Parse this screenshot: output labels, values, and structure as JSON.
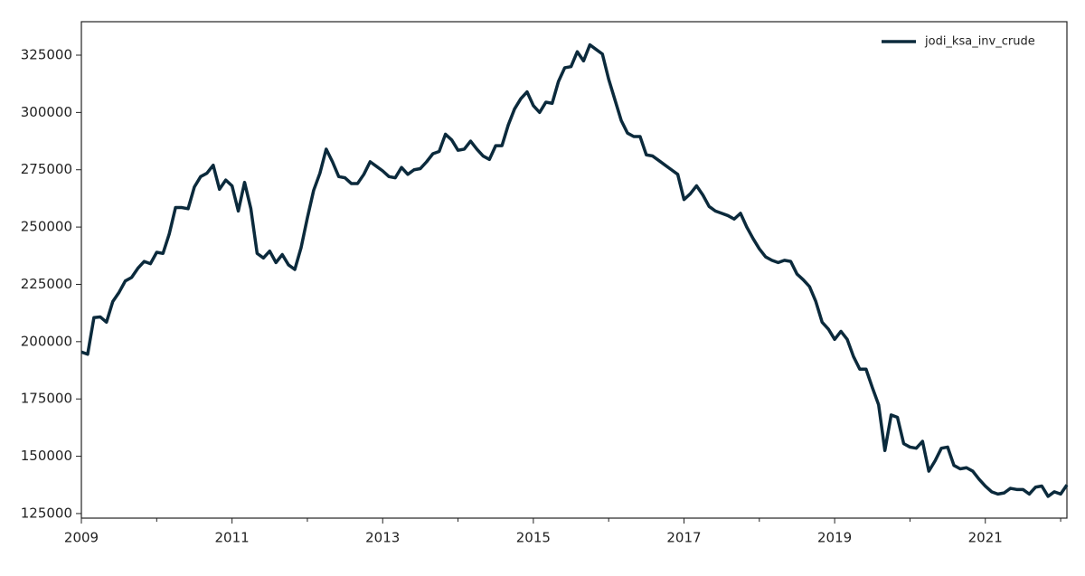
{
  "chart_data": {
    "type": "line",
    "x": [
      2009,
      2009.0833,
      2009.1667,
      2009.25,
      2009.3333,
      2009.4167,
      2009.5,
      2009.5833,
      2009.6667,
      2009.75,
      2009.8333,
      2009.9167,
      2010,
      2010.0833,
      2010.1667,
      2010.25,
      2010.3333,
      2010.4167,
      2010.5,
      2010.5833,
      2010.6667,
      2010.75,
      2010.8333,
      2010.9167,
      2011,
      2011.0833,
      2011.1667,
      2011.25,
      2011.3333,
      2011.4167,
      2011.5,
      2011.5833,
      2011.6667,
      2011.75,
      2011.8333,
      2011.9167,
      2012,
      2012.0833,
      2012.1667,
      2012.25,
      2012.3333,
      2012.4167,
      2012.5,
      2012.5833,
      2012.6667,
      2012.75,
      2012.8333,
      2012.9167,
      2013,
      2013.0833,
      2013.1667,
      2013.25,
      2013.3333,
      2013.4167,
      2013.5,
      2013.5833,
      2013.6667,
      2013.75,
      2013.8333,
      2013.9167,
      2014,
      2014.0833,
      2014.1667,
      2014.25,
      2014.3333,
      2014.4167,
      2014.5,
      2014.5833,
      2014.6667,
      2014.75,
      2014.8333,
      2014.9167,
      2015,
      2015.0833,
      2015.1667,
      2015.25,
      2015.3333,
      2015.4167,
      2015.5,
      2015.5833,
      2015.6667,
      2015.75,
      2015.8333,
      2015.9167,
      2016,
      2016.0833,
      2016.1667,
      2016.25,
      2016.3333,
      2016.4167,
      2016.5,
      2016.5833,
      2016.6667,
      2016.75,
      2016.8333,
      2016.9167,
      2017,
      2017.0833,
      2017.1667,
      2017.25,
      2017.3333,
      2017.4167,
      2017.5,
      2017.5833,
      2017.6667,
      2017.75,
      2017.8333,
      2017.9167,
      2018,
      2018.0833,
      2018.1667,
      2018.25,
      2018.3333,
      2018.4167,
      2018.5,
      2018.5833,
      2018.6667,
      2018.75,
      2018.8333,
      2018.9167,
      2019,
      2019.0833,
      2019.1667,
      2019.25,
      2019.3333,
      2019.4167,
      2019.5,
      2019.5833,
      2019.6667,
      2019.75,
      2019.8333,
      2019.9167,
      2020,
      2020.0833,
      2020.1667,
      2020.25,
      2020.3333,
      2020.4167,
      2020.5,
      2020.5833,
      2020.6667,
      2020.75,
      2020.8333,
      2020.9167,
      2021,
      2021.0833,
      2021.1667,
      2021.25,
      2021.3333,
      2021.4167,
      2021.5,
      2021.5833,
      2021.6667,
      2021.75,
      2021.8333,
      2021.9167,
      2022,
      2022.0833
    ],
    "series": [
      {
        "name": "jodi_ksa_inv_crude",
        "color": "#0b2a3c",
        "values": [
          195500,
          194500,
          210500,
          210800,
          208500,
          217500,
          221500,
          226500,
          228000,
          232000,
          235000,
          234000,
          239000,
          238500,
          247000,
          258500,
          258500,
          258000,
          267500,
          272000,
          273500,
          277000,
          266500,
          270500,
          268000,
          257000,
          269500,
          258000,
          238500,
          236500,
          239500,
          234500,
          238000,
          233500,
          231500,
          241000,
          254000,
          266000,
          273500,
          284000,
          278500,
          272000,
          271500,
          269000,
          269000,
          273000,
          278500,
          276500,
          274500,
          272000,
          271500,
          276000,
          273000,
          275000,
          275500,
          278500,
          282000,
          283000,
          290500,
          288000,
          283500,
          284000,
          287500,
          284000,
          281000,
          279500,
          285500,
          285500,
          294500,
          301500,
          306000,
          309000,
          303000,
          300000,
          304500,
          304000,
          313500,
          319500,
          320000,
          326500,
          322500,
          329500,
          327500,
          325500,
          314500,
          305500,
          296500,
          291000,
          289500,
          289500,
          281500,
          281000,
          279000,
          277000,
          275000,
          273000,
          262000,
          264500,
          268000,
          264000,
          259000,
          257000,
          256000,
          255000,
          253500,
          256000,
          250000,
          245000,
          240500,
          237000,
          235500,
          234500,
          235500,
          235000,
          229500,
          227000,
          224000,
          217500,
          208500,
          205500,
          201000,
          204500,
          201000,
          193500,
          188000,
          188000,
          180000,
          172500,
          152500,
          168000,
          167000,
          155500,
          154000,
          153500,
          156500,
          143500,
          148000,
          153500,
          154000,
          146000,
          144500,
          145000,
          143500,
          140000,
          137000,
          134500,
          133500,
          134000,
          136000,
          135500,
          135500,
          133500,
          136500,
          137000,
          132500,
          134500,
          133500,
          137500
        ]
      }
    ],
    "xlim": [
      2009,
      2022.0833
    ],
    "xticks": [
      2009,
      2011,
      2013,
      2015,
      2017,
      2019,
      2021
    ],
    "xminor_ticks": [
      2010,
      2012,
      2014,
      2016,
      2018,
      2020,
      2022
    ],
    "ylim": [
      123000,
      339600
    ],
    "yticks": [
      125000,
      150000,
      175000,
      200000,
      225000,
      250000,
      275000,
      300000,
      325000
    ],
    "legend": "upper right"
  }
}
